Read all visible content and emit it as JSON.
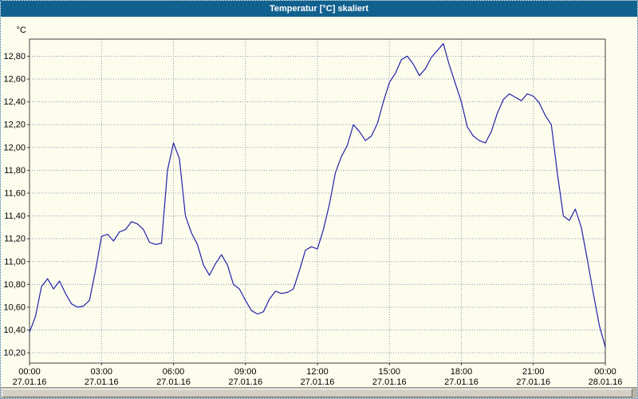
{
  "titlebar": {
    "title": "Temperatur [°C] skaliert"
  },
  "colors": {
    "titlebar_bg": "#11618f",
    "titlebar_text": "#ffffff",
    "background": "#fdfdee",
    "line": "#2121aa",
    "grid": "#8b96a8",
    "axis": "#404040",
    "text": "#000000"
  },
  "chart_data": {
    "type": "line",
    "title": "Temperatur [°C] skaliert",
    "xlabel": "",
    "ylabel": "°C",
    "xlim": [
      0,
      24
    ],
    "ylim": [
      10.11,
      12.95
    ],
    "grid": "dotted",
    "legend": "none",
    "y_ticks": [
      {
        "v": 10.2,
        "label": "10,20"
      },
      {
        "v": 10.4,
        "label": "10,40"
      },
      {
        "v": 10.6,
        "label": "10,60"
      },
      {
        "v": 10.8,
        "label": "10,80"
      },
      {
        "v": 11.0,
        "label": "11,00"
      },
      {
        "v": 11.2,
        "label": "11,20"
      },
      {
        "v": 11.4,
        "label": "11,40"
      },
      {
        "v": 11.6,
        "label": "11,60"
      },
      {
        "v": 11.8,
        "label": "11,80"
      },
      {
        "v": 12.0,
        "label": "12,00"
      },
      {
        "v": 12.2,
        "label": "12,20"
      },
      {
        "v": 12.4,
        "label": "12,40"
      },
      {
        "v": 12.6,
        "label": "12,60"
      },
      {
        "v": 12.8,
        "label": "12,80"
      }
    ],
    "x_ticks": [
      {
        "v": 0,
        "time": "00:00",
        "date": "27.01.16"
      },
      {
        "v": 3,
        "time": "03:00",
        "date": "27.01.16"
      },
      {
        "v": 6,
        "time": "06:00",
        "date": "27.01.16"
      },
      {
        "v": 9,
        "time": "09:00",
        "date": "27.01.16"
      },
      {
        "v": 12,
        "time": "12:00",
        "date": "27.01.16"
      },
      {
        "v": 15,
        "time": "15:00",
        "date": "27.01.16"
      },
      {
        "v": 18,
        "time": "18:00",
        "date": "27.01.16"
      },
      {
        "v": 21,
        "time": "21:00",
        "date": "27.01.16"
      },
      {
        "v": 24,
        "time": "00:00",
        "date": "28.01.16"
      }
    ],
    "series_name": "Temperatur [°C]",
    "points": [
      [
        0.0,
        10.38
      ],
      [
        0.25,
        10.52
      ],
      [
        0.5,
        10.78
      ],
      [
        0.75,
        10.85
      ],
      [
        1.0,
        10.76
      ],
      [
        1.25,
        10.83
      ],
      [
        1.5,
        10.72
      ],
      [
        1.75,
        10.63
      ],
      [
        2.0,
        10.6
      ],
      [
        2.25,
        10.61
      ],
      [
        2.5,
        10.66
      ],
      [
        2.75,
        10.92
      ],
      [
        3.0,
        11.22
      ],
      [
        3.25,
        11.24
      ],
      [
        3.5,
        11.18
      ],
      [
        3.75,
        11.26
      ],
      [
        4.0,
        11.28
      ],
      [
        4.25,
        11.35
      ],
      [
        4.5,
        11.33
      ],
      [
        4.75,
        11.28
      ],
      [
        5.0,
        11.17
      ],
      [
        5.25,
        11.15
      ],
      [
        5.5,
        11.16
      ],
      [
        5.75,
        11.8
      ],
      [
        6.0,
        12.04
      ],
      [
        6.25,
        11.9
      ],
      [
        6.5,
        11.4
      ],
      [
        6.75,
        11.25
      ],
      [
        7.0,
        11.15
      ],
      [
        7.25,
        10.97
      ],
      [
        7.5,
        10.88
      ],
      [
        7.75,
        10.98
      ],
      [
        8.0,
        11.06
      ],
      [
        8.25,
        10.97
      ],
      [
        8.5,
        10.8
      ],
      [
        8.75,
        10.76
      ],
      [
        9.0,
        10.66
      ],
      [
        9.25,
        10.57
      ],
      [
        9.5,
        10.54
      ],
      [
        9.75,
        10.56
      ],
      [
        10.0,
        10.67
      ],
      [
        10.25,
        10.74
      ],
      [
        10.5,
        10.72
      ],
      [
        10.75,
        10.73
      ],
      [
        11.0,
        10.76
      ],
      [
        11.25,
        10.92
      ],
      [
        11.5,
        11.1
      ],
      [
        11.75,
        11.13
      ],
      [
        12.0,
        11.11
      ],
      [
        12.25,
        11.28
      ],
      [
        12.5,
        11.5
      ],
      [
        12.75,
        11.78
      ],
      [
        13.0,
        11.92
      ],
      [
        13.25,
        12.02
      ],
      [
        13.5,
        12.2
      ],
      [
        13.75,
        12.14
      ],
      [
        14.0,
        12.06
      ],
      [
        14.25,
        12.1
      ],
      [
        14.5,
        12.21
      ],
      [
        14.75,
        12.4
      ],
      [
        15.0,
        12.57
      ],
      [
        15.25,
        12.65
      ],
      [
        15.5,
        12.77
      ],
      [
        15.75,
        12.8
      ],
      [
        16.0,
        12.73
      ],
      [
        16.25,
        12.63
      ],
      [
        16.5,
        12.69
      ],
      [
        16.75,
        12.79
      ],
      [
        17.0,
        12.85
      ],
      [
        17.25,
        12.91
      ],
      [
        17.5,
        12.72
      ],
      [
        17.75,
        12.56
      ],
      [
        18.0,
        12.4
      ],
      [
        18.25,
        12.18
      ],
      [
        18.5,
        12.1
      ],
      [
        18.75,
        12.06
      ],
      [
        19.0,
        12.04
      ],
      [
        19.25,
        12.14
      ],
      [
        19.5,
        12.3
      ],
      [
        19.75,
        12.42
      ],
      [
        20.0,
        12.47
      ],
      [
        20.25,
        12.44
      ],
      [
        20.5,
        12.41
      ],
      [
        20.75,
        12.47
      ],
      [
        21.0,
        12.45
      ],
      [
        21.25,
        12.39
      ],
      [
        21.5,
        12.28
      ],
      [
        21.75,
        12.2
      ],
      [
        22.0,
        11.78
      ],
      [
        22.25,
        11.4
      ],
      [
        22.5,
        11.36
      ],
      [
        22.75,
        11.46
      ],
      [
        23.0,
        11.3
      ],
      [
        23.25,
        11.02
      ],
      [
        23.5,
        10.72
      ],
      [
        23.75,
        10.44
      ],
      [
        24.0,
        10.25
      ]
    ]
  }
}
